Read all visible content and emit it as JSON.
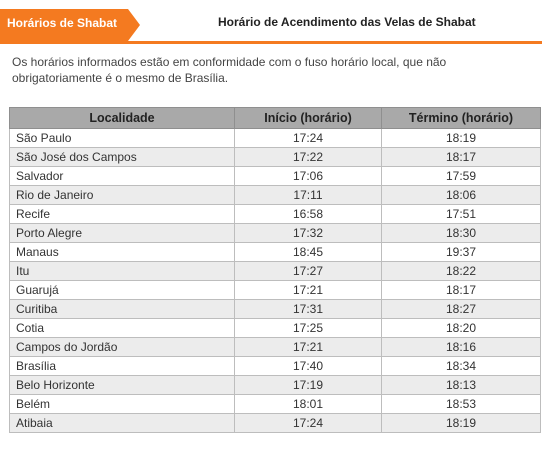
{
  "header": {
    "tab_label": "Horários de Shabat",
    "title": "Horário de Acendimento das Velas de Shabat"
  },
  "intro": "Os horários informados estão em conformidade com o fuso horário local, que não obrigatoriamente é o mesmo de Brasília.",
  "colors": {
    "accent": "#f47a20",
    "table_header_bg": "#a9a9a9",
    "row_alt_bg": "#ececec"
  },
  "table": {
    "columns": [
      "Localidade",
      "Início (horário)",
      "Término (horário)"
    ],
    "rows": [
      {
        "city": "São Paulo",
        "start": "17:24",
        "end": "18:19"
      },
      {
        "city": "São José dos Campos",
        "start": "17:22",
        "end": "18:17"
      },
      {
        "city": "Salvador",
        "start": "17:06",
        "end": "17:59"
      },
      {
        "city": "Rio de Janeiro",
        "start": "17:11",
        "end": "18:06"
      },
      {
        "city": "Recife",
        "start": "16:58",
        "end": "17:51"
      },
      {
        "city": "Porto Alegre",
        "start": "17:32",
        "end": "18:30"
      },
      {
        "city": "Manaus",
        "start": "18:45",
        "end": "19:37"
      },
      {
        "city": "Itu",
        "start": "17:27",
        "end": "18:22"
      },
      {
        "city": "Guarujá",
        "start": "17:21",
        "end": "18:17"
      },
      {
        "city": "Curitiba",
        "start": "17:31",
        "end": "18:27"
      },
      {
        "city": "Cotia",
        "start": "17:25",
        "end": "18:20"
      },
      {
        "city": "Campos do Jordão",
        "start": "17:21",
        "end": "18:16"
      },
      {
        "city": "Brasília",
        "start": "17:40",
        "end": "18:34"
      },
      {
        "city": "Belo Horizonte",
        "start": "17:19",
        "end": "18:13"
      },
      {
        "city": "Belém",
        "start": "18:01",
        "end": "18:53"
      },
      {
        "city": "Atibaia",
        "start": "17:24",
        "end": "18:19"
      }
    ]
  }
}
